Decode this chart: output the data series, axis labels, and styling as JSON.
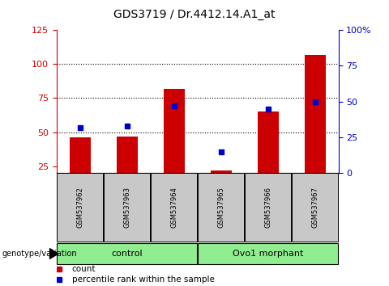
{
  "title": "GDS3719 / Dr.4412.14.A1_at",
  "samples": [
    "GSM537962",
    "GSM537963",
    "GSM537964",
    "GSM537965",
    "GSM537966",
    "GSM537967"
  ],
  "counts": [
    46,
    47,
    82,
    22,
    65,
    107
  ],
  "percentiles": [
    32,
    33,
    47,
    15,
    45,
    50
  ],
  "left_ylim": [
    20,
    125
  ],
  "left_yticks": [
    25,
    50,
    75,
    100,
    125
  ],
  "right_ylim": [
    0,
    100
  ],
  "right_yticks": [
    0,
    25,
    50,
    75,
    100
  ],
  "bar_color": "#CC0000",
  "scatter_color": "#0000CC",
  "bar_width": 0.45,
  "hline_values": [
    50,
    75,
    100
  ],
  "group_row_color": "#C8C8C8",
  "group_bg_color": "#90EE90",
  "label_count": "count",
  "label_percentile": "percentile rank within the sample",
  "ylabel_left_color": "#CC0000",
  "ylabel_right_color": "#0000CC",
  "group_ranges": [
    [
      0,
      2,
      "control"
    ],
    [
      3,
      5,
      "Ovo1 morphant"
    ]
  ]
}
